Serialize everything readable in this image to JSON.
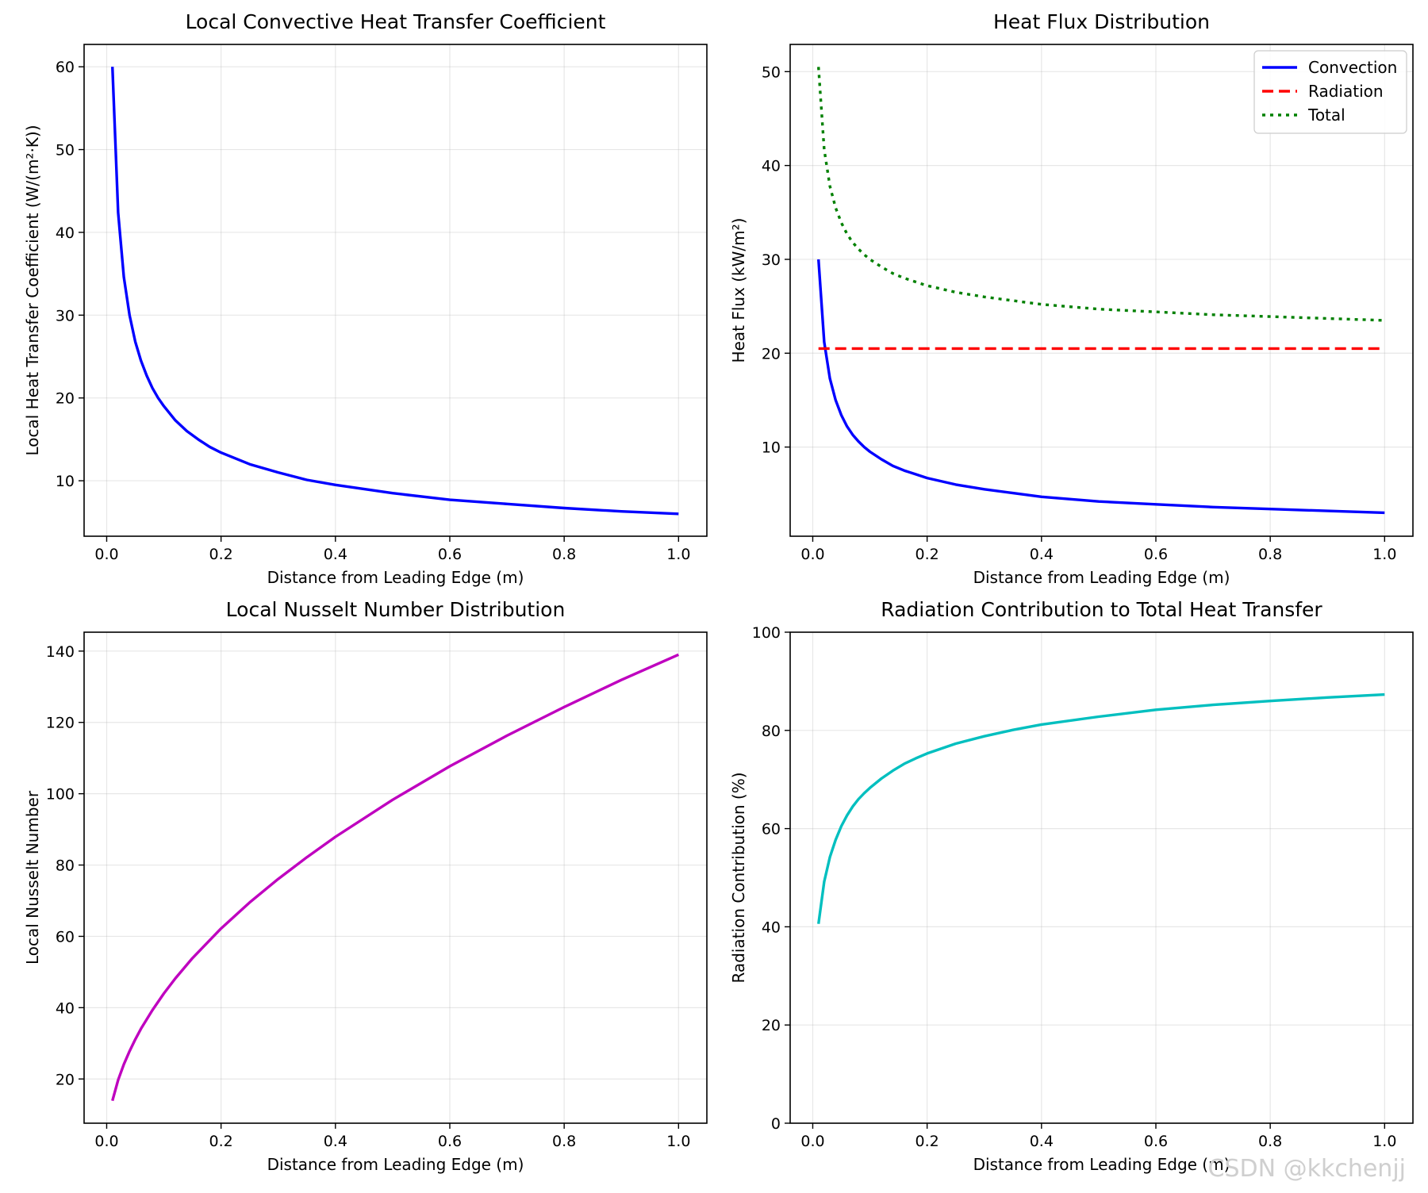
{
  "watermark": "CSDN @kkchenjj",
  "chart_data": [
    {
      "type": "line",
      "title": "Local Convective Heat Transfer Coefficient",
      "xlabel": "Distance from Leading Edge (m)",
      "ylabel": "Local Heat Transfer Coefficient (W/(m²·K))",
      "xlim": [
        -0.0395,
        1.0495
      ],
      "ylim": [
        3.3,
        62.7
      ],
      "xticks": [
        "0.0",
        "0.2",
        "0.4",
        "0.6",
        "0.8",
        "1.0"
      ],
      "yticks": [
        "10",
        "20",
        "30",
        "40",
        "50",
        "60"
      ],
      "grid": true,
      "series": [
        {
          "color": "#0000ff",
          "style": "solid",
          "x": [
            0.01,
            0.02,
            0.03,
            0.04,
            0.05,
            0.06,
            0.07,
            0.08,
            0.09,
            0.1,
            0.12,
            0.14,
            0.16,
            0.18,
            0.2,
            0.25,
            0.3,
            0.35,
            0.4,
            0.5,
            0.6,
            0.7,
            0.8,
            0.9,
            1.0
          ],
          "y": [
            60.0,
            42.4,
            34.6,
            30.0,
            26.8,
            24.5,
            22.7,
            21.2,
            20.0,
            19.0,
            17.3,
            16.0,
            15.0,
            14.1,
            13.4,
            12.0,
            11.0,
            10.1,
            9.5,
            8.5,
            7.7,
            7.2,
            6.7,
            6.3,
            6.0
          ]
        }
      ]
    },
    {
      "type": "line",
      "title": "Heat Flux Distribution",
      "xlabel": "Distance from Leading Edge (m)",
      "ylabel": "Heat Flux (kW/m²)",
      "xlim": [
        -0.0395,
        1.0495
      ],
      "ylim": [
        0.5,
        52.9
      ],
      "xticks": [
        "0.0",
        "0.2",
        "0.4",
        "0.6",
        "0.8",
        "1.0"
      ],
      "yticks": [
        "10",
        "20",
        "30",
        "40",
        "50"
      ],
      "grid": true,
      "legend": "top-right",
      "series": [
        {
          "name": "Convection",
          "color": "#0000ff",
          "style": "solid",
          "x": [
            0.01,
            0.02,
            0.03,
            0.04,
            0.05,
            0.06,
            0.07,
            0.08,
            0.09,
            0.1,
            0.12,
            0.14,
            0.16,
            0.18,
            0.2,
            0.25,
            0.3,
            0.35,
            0.4,
            0.5,
            0.6,
            0.7,
            0.8,
            0.9,
            1.0
          ],
          "y": [
            30.0,
            21.2,
            17.3,
            15.0,
            13.4,
            12.2,
            11.3,
            10.6,
            10.0,
            9.5,
            8.7,
            8.0,
            7.5,
            7.1,
            6.7,
            6.0,
            5.5,
            5.1,
            4.7,
            4.2,
            3.9,
            3.6,
            3.4,
            3.2,
            3.0
          ]
        },
        {
          "name": "Radiation",
          "color": "#ff0000",
          "style": "dashed",
          "x": [
            0.01,
            1.0
          ],
          "y": [
            20.5,
            20.5
          ]
        },
        {
          "name": "Total",
          "color": "#008000",
          "style": "dotted",
          "x": [
            0.01,
            0.02,
            0.03,
            0.04,
            0.05,
            0.06,
            0.07,
            0.08,
            0.09,
            0.1,
            0.12,
            0.14,
            0.16,
            0.18,
            0.2,
            0.25,
            0.3,
            0.35,
            0.4,
            0.5,
            0.6,
            0.7,
            0.8,
            0.9,
            1.0
          ],
          "y": [
            50.5,
            41.7,
            37.8,
            35.5,
            33.9,
            32.7,
            31.8,
            31.1,
            30.5,
            30.0,
            29.2,
            28.5,
            28.0,
            27.6,
            27.2,
            26.5,
            26.0,
            25.6,
            25.2,
            24.7,
            24.4,
            24.1,
            23.9,
            23.7,
            23.5
          ]
        }
      ]
    },
    {
      "type": "line",
      "title": "Local Nusselt Number Distribution",
      "xlabel": "Distance from Leading Edge (m)",
      "ylabel": "Local Nusselt Number",
      "xlim": [
        -0.0395,
        1.0495
      ],
      "ylim": [
        7.6,
        145.3
      ],
      "xticks": [
        "0.0",
        "0.2",
        "0.4",
        "0.6",
        "0.8",
        "1.0"
      ],
      "yticks": [
        "20",
        "40",
        "60",
        "80",
        "100",
        "120",
        "140"
      ],
      "grid": true,
      "series": [
        {
          "color": "#bf00bf",
          "style": "solid",
          "x": [
            0.01,
            0.02,
            0.03,
            0.04,
            0.05,
            0.06,
            0.08,
            0.1,
            0.12,
            0.15,
            0.2,
            0.25,
            0.3,
            0.35,
            0.4,
            0.5,
            0.6,
            0.7,
            0.8,
            0.9,
            1.0
          ],
          "y": [
            13.9,
            19.7,
            24.1,
            27.8,
            31.1,
            34.1,
            39.3,
            44.0,
            48.2,
            53.9,
            62.2,
            69.5,
            76.1,
            82.2,
            87.9,
            98.3,
            107.7,
            116.3,
            124.3,
            131.9,
            139.0
          ]
        }
      ]
    },
    {
      "type": "line",
      "title": "Radiation Contribution to Total Heat Transfer",
      "xlabel": "Distance from Leading Edge (m)",
      "ylabel": "Radiation Contribution (%)",
      "xlim": [
        -0.0395,
        1.0495
      ],
      "ylim": [
        0,
        100
      ],
      "xticks": [
        "0.0",
        "0.2",
        "0.4",
        "0.6",
        "0.8",
        "1.0"
      ],
      "yticks": [
        "0",
        "20",
        "40",
        "60",
        "80",
        "100"
      ],
      "grid": true,
      "series": [
        {
          "color": "#00bfbf",
          "style": "solid",
          "x": [
            0.01,
            0.02,
            0.03,
            0.04,
            0.05,
            0.06,
            0.07,
            0.08,
            0.09,
            0.1,
            0.12,
            0.14,
            0.16,
            0.18,
            0.2,
            0.25,
            0.3,
            0.35,
            0.4,
            0.5,
            0.6,
            0.7,
            0.8,
            0.9,
            1.0
          ],
          "y": [
            40.6,
            49.2,
            54.2,
            57.7,
            60.5,
            62.7,
            64.5,
            66.0,
            67.2,
            68.3,
            70.2,
            71.8,
            73.2,
            74.3,
            75.3,
            77.3,
            78.8,
            80.1,
            81.2,
            82.8,
            84.2,
            85.2,
            86.0,
            86.7,
            87.3
          ]
        }
      ]
    }
  ]
}
